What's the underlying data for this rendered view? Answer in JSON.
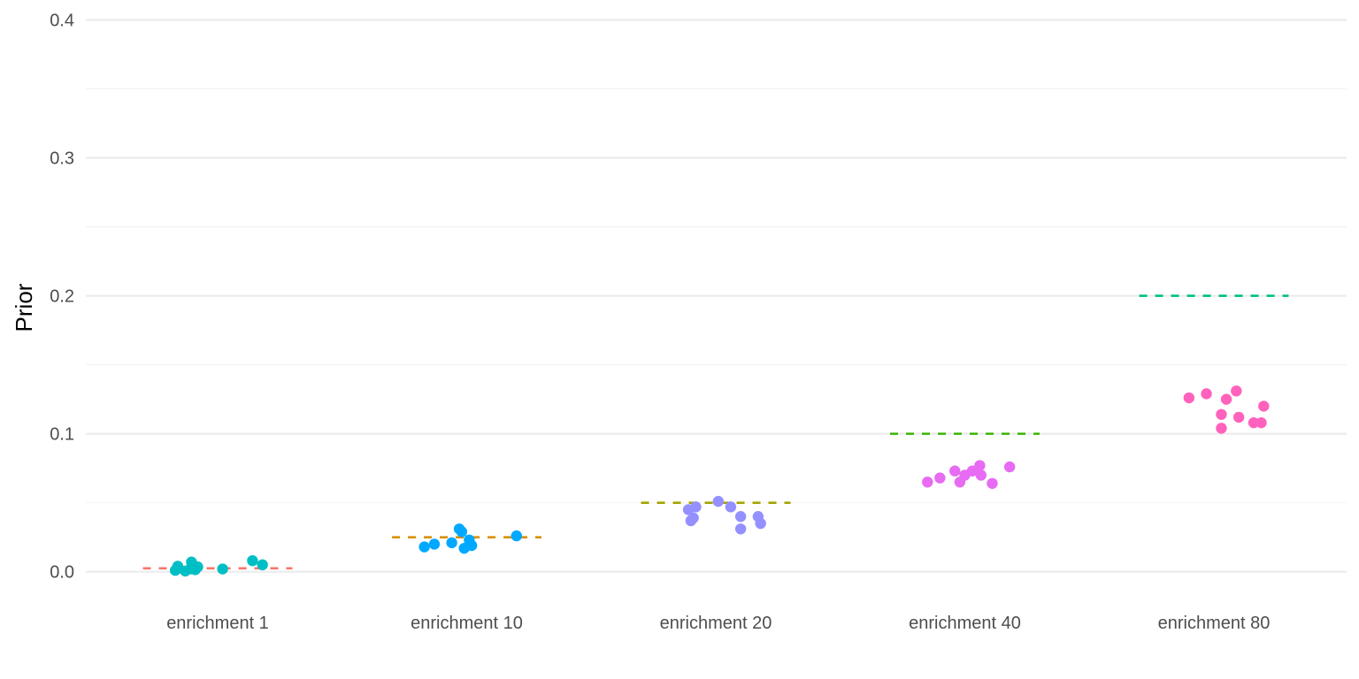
{
  "chart_data": {
    "type": "scatter",
    "title": "",
    "xlabel": "",
    "ylabel": "Prior",
    "ylim": [
      -0.022,
      0.408
    ],
    "y_ticks": [
      "0.0",
      "0.1",
      "0.2",
      "0.3",
      "0.4"
    ],
    "y_tick_values": [
      0.0,
      0.1,
      0.2,
      0.3,
      0.4
    ],
    "y_minor_tick_values": [
      0.05,
      0.15,
      0.25,
      0.35
    ],
    "grid": true,
    "legend": "none",
    "categories": [
      "enrichment 1",
      "enrichment 10",
      "enrichment 20",
      "enrichment 40",
      "enrichment 80"
    ],
    "series": [
      {
        "category": "enrichment 1",
        "point_color": "#00BFC4",
        "reference_value": 0.0025,
        "reference_color": "#F8766D",
        "points": [
          {
            "offset": -0.17,
            "y": 0.001
          },
          {
            "offset": -0.16,
            "y": 0.004
          },
          {
            "offset": -0.13,
            "y": 0.0005
          },
          {
            "offset": -0.11,
            "y": 0.002
          },
          {
            "offset": -0.105,
            "y": 0.007
          },
          {
            "offset": -0.1,
            "y": 0.003
          },
          {
            "offset": -0.09,
            "y": 0.0015
          },
          {
            "offset": -0.08,
            "y": 0.0035
          },
          {
            "offset": 0.02,
            "y": 0.002
          },
          {
            "offset": 0.14,
            "y": 0.008
          },
          {
            "offset": 0.18,
            "y": 0.005
          }
        ]
      },
      {
        "category": "enrichment 10",
        "point_color": "#00A9FF",
        "reference_value": 0.025,
        "reference_color": "#D89000",
        "points": [
          {
            "offset": -0.17,
            "y": 0.018
          },
          {
            "offset": -0.13,
            "y": 0.02
          },
          {
            "offset": -0.06,
            "y": 0.021
          },
          {
            "offset": -0.03,
            "y": 0.031
          },
          {
            "offset": -0.02,
            "y": 0.029
          },
          {
            "offset": -0.01,
            "y": 0.017
          },
          {
            "offset": 0.01,
            "y": 0.023
          },
          {
            "offset": 0.02,
            "y": 0.019
          },
          {
            "offset": 0.2,
            "y": 0.026
          }
        ]
      },
      {
        "category": "enrichment 20",
        "point_color": "#9590FF",
        "reference_value": 0.05,
        "reference_color": "#A3A500",
        "points": [
          {
            "offset": -0.11,
            "y": 0.045
          },
          {
            "offset": -0.1,
            "y": 0.037
          },
          {
            "offset": -0.09,
            "y": 0.039
          },
          {
            "offset": -0.08,
            "y": 0.047
          },
          {
            "offset": 0.01,
            "y": 0.051
          },
          {
            "offset": 0.06,
            "y": 0.047
          },
          {
            "offset": 0.1,
            "y": 0.031
          },
          {
            "offset": 0.1,
            "y": 0.04
          },
          {
            "offset": 0.17,
            "y": 0.04
          },
          {
            "offset": 0.18,
            "y": 0.035
          }
        ]
      },
      {
        "category": "enrichment 40",
        "point_color": "#E76BF3",
        "reference_value": 0.1,
        "reference_color": "#39B600",
        "points": [
          {
            "offset": -0.15,
            "y": 0.065
          },
          {
            "offset": -0.1,
            "y": 0.068
          },
          {
            "offset": -0.04,
            "y": 0.073
          },
          {
            "offset": -0.02,
            "y": 0.065
          },
          {
            "offset": 0.0,
            "y": 0.07
          },
          {
            "offset": 0.03,
            "y": 0.073
          },
          {
            "offset": 0.06,
            "y": 0.077
          },
          {
            "offset": 0.065,
            "y": 0.07
          },
          {
            "offset": 0.11,
            "y": 0.064
          },
          {
            "offset": 0.18,
            "y": 0.076
          }
        ]
      },
      {
        "category": "enrichment 80",
        "point_color": "#FF62BC",
        "reference_value": 0.2,
        "reference_color": "#00BF7D",
        "points": [
          {
            "offset": -0.1,
            "y": 0.126
          },
          {
            "offset": -0.03,
            "y": 0.129
          },
          {
            "offset": 0.03,
            "y": 0.114
          },
          {
            "offset": 0.03,
            "y": 0.104
          },
          {
            "offset": 0.05,
            "y": 0.125
          },
          {
            "offset": 0.09,
            "y": 0.131
          },
          {
            "offset": 0.1,
            "y": 0.112
          },
          {
            "offset": 0.16,
            "y": 0.108
          },
          {
            "offset": 0.19,
            "y": 0.108
          },
          {
            "offset": 0.2,
            "y": 0.12
          }
        ]
      }
    ]
  }
}
